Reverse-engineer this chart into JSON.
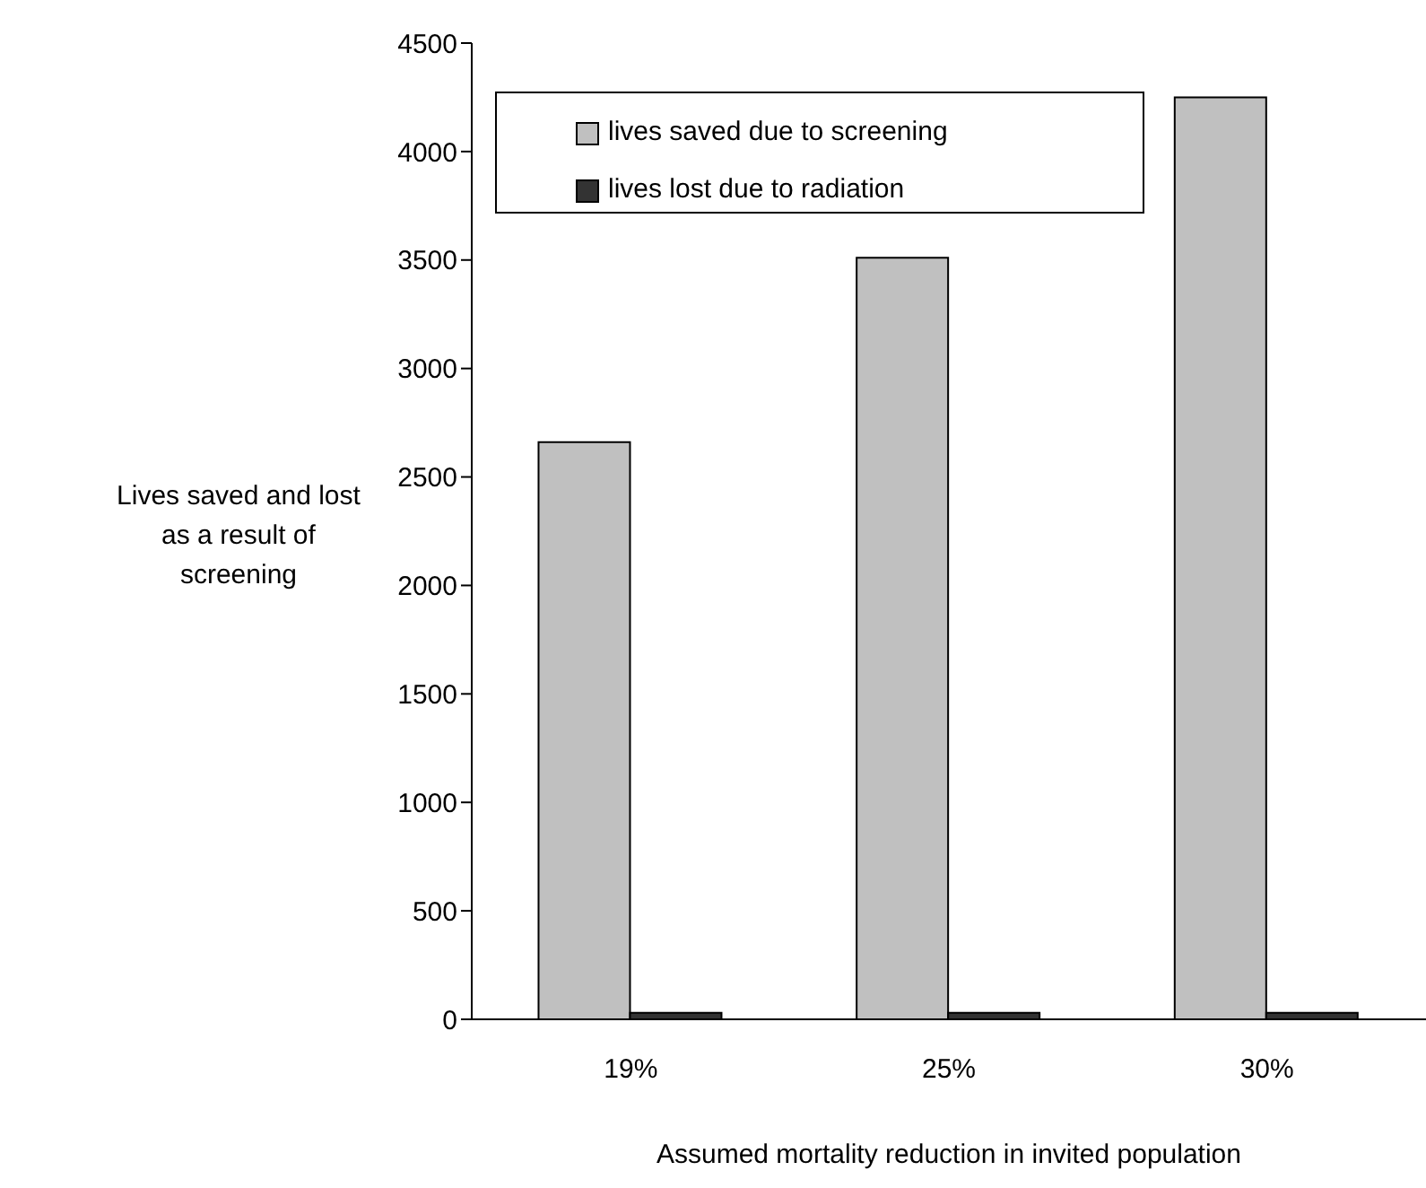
{
  "chart_data": {
    "type": "bar",
    "xlabel": "Assumed mortality reduction in invited population",
    "ylabel": "Lives saved and lost as a result of screening",
    "categories": [
      "19%",
      "25%",
      "30%"
    ],
    "series": [
      {
        "name": "lives saved due to screening",
        "color": "#c0c0c0",
        "values": [
          2660,
          3510,
          4250
        ]
      },
      {
        "name": "lives lost due to radiation",
        "color": "#333333",
        "values": [
          30,
          30,
          30
        ]
      }
    ],
    "ylim": [
      0,
      4500
    ],
    "yticks": [
      0,
      500,
      1000,
      1500,
      2000,
      2500,
      3000,
      3500,
      4000,
      4500
    ],
    "grid": false,
    "legend": "top left"
  }
}
